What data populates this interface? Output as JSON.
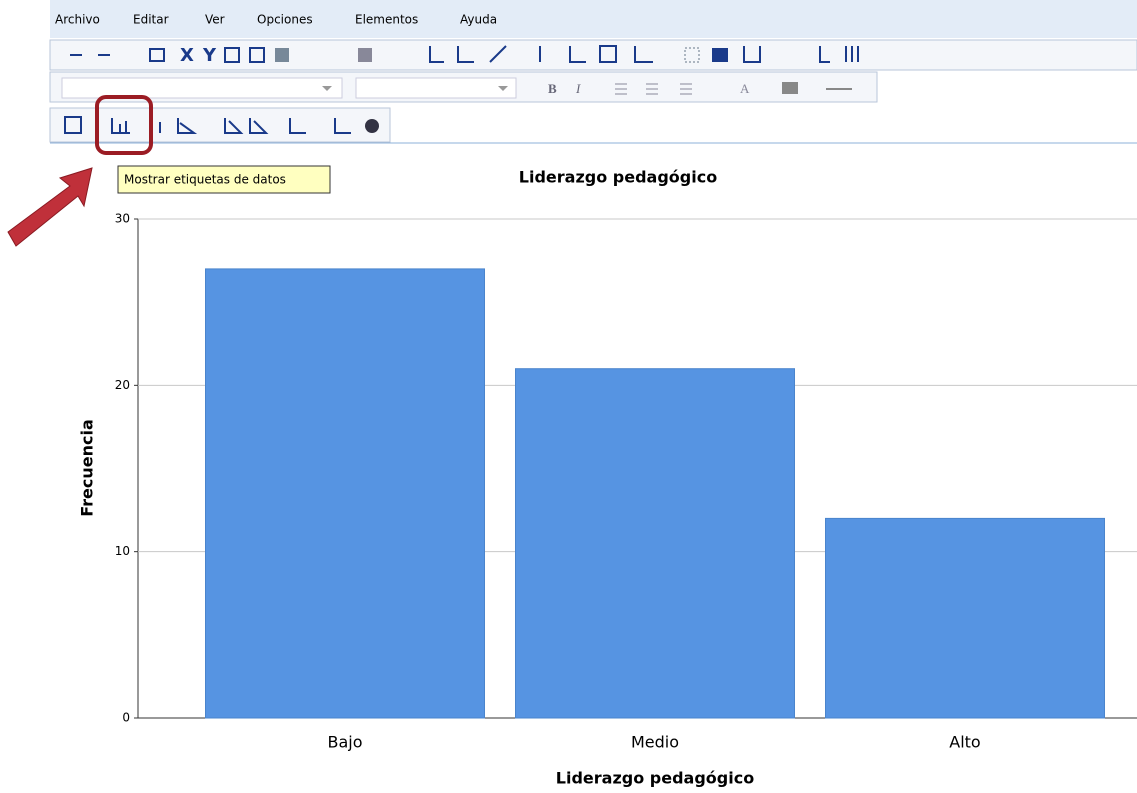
{
  "menu": [
    "Archivo",
    "Editar",
    "Ver",
    "Opciones",
    "Elementos",
    "Ayuda"
  ],
  "toolbar": {
    "format_buttons": [
      "B",
      "I",
      "A"
    ]
  },
  "tooltip": "Mostrar etiquetas de datos",
  "chart_data": {
    "type": "bar",
    "title": "Liderazgo pedagógico",
    "x_label": "Liderazgo pedagógico",
    "y_label": "Frecuencia",
    "categories": [
      "Bajo",
      "Medio",
      "Alto"
    ],
    "values": [
      27,
      21,
      12
    ],
    "color": "#5694e2",
    "ylim": [
      0,
      30
    ],
    "yticks": [
      0,
      10,
      20,
      30
    ],
    "grid": true
  }
}
